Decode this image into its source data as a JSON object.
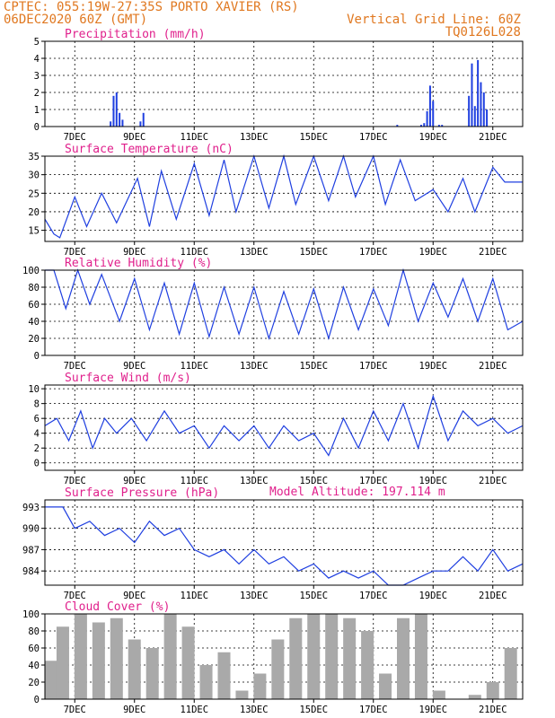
{
  "header": {
    "line1_left": "CPTEC:   055:19W-27:35S   PORTO XAVIER (RS)",
    "line2_left": "06DEC2020 60Z (GMT)",
    "line1_right": "Vertical Grid Line: 60Z",
    "line2_right": "TQ0126L028"
  },
  "colors": {
    "header": "#e07820",
    "title": "#e0208c",
    "series": "#1f3fe0",
    "cloud": "#a9a9a9"
  },
  "model_altitude": "Model Altitude: 197.114 m",
  "x_tick_labels": [
    "7DEC",
    "9DEC",
    "11DEC",
    "13DEC",
    "15DEC",
    "17DEC",
    "19DEC",
    "21DEC"
  ],
  "chart_data": [
    {
      "type": "bar",
      "title": "Precipitation (mm/h)",
      "x": [
        1.1,
        1.15,
        1.2,
        1.25,
        1.3,
        1.6,
        1.65,
        5.9,
        6.3,
        6.35,
        6.4,
        6.45,
        6.5,
        6.6,
        6.65,
        7.1,
        7.15,
        7.2,
        7.25,
        7.3,
        7.35,
        7.4
      ],
      "values": [
        0.3,
        1.8,
        2.0,
        0.8,
        0.4,
        0.3,
        0.8,
        0.1,
        0.1,
        0.2,
        0.9,
        2.4,
        1.5,
        0.1,
        0.1,
        1.8,
        3.7,
        1.2,
        3.9,
        2.6,
        2.0,
        1.0
      ],
      "ylim": [
        0,
        5
      ],
      "yticks": [
        0,
        1,
        2,
        3,
        4,
        5
      ]
    },
    {
      "type": "line",
      "title": "Surface Temperature (nC)",
      "x": [
        0,
        0.15,
        0.25,
        0.5,
        0.7,
        0.95,
        1.2,
        1.55,
        1.75,
        1.95,
        2.2,
        2.5,
        2.75,
        3.0,
        3.2,
        3.5,
        3.75,
        4.0,
        4.2,
        4.5,
        4.75,
        5.0,
        5.2,
        5.5,
        5.7,
        5.95,
        6.2,
        6.5,
        6.75,
        7.0,
        7.2,
        7.5,
        7.7,
        8.0
      ],
      "values": [
        18,
        14,
        13,
        24,
        16,
        25,
        17,
        29,
        16,
        31,
        18,
        33,
        19,
        34,
        20,
        35,
        21,
        35,
        22,
        35,
        23,
        35,
        24,
        35,
        22,
        34,
        23,
        26,
        20,
        29,
        20,
        32,
        28,
        28
      ],
      "ylim": [
        12,
        35
      ],
      "yticks": [
        15,
        20,
        25,
        30,
        35
      ]
    },
    {
      "type": "line",
      "title": "Relative Humidity (%)",
      "x": [
        0,
        0.15,
        0.35,
        0.55,
        0.75,
        0.95,
        1.25,
        1.5,
        1.75,
        2.0,
        2.25,
        2.5,
        2.75,
        3.0,
        3.25,
        3.5,
        3.75,
        4.0,
        4.25,
        4.5,
        4.75,
        5.0,
        5.25,
        5.5,
        5.75,
        6.0,
        6.25,
        6.5,
        6.75,
        7.0,
        7.25,
        7.5,
        7.75,
        8.0
      ],
      "values": [
        100,
        100,
        55,
        100,
        60,
        95,
        40,
        90,
        30,
        85,
        25,
        85,
        22,
        80,
        25,
        80,
        20,
        75,
        25,
        78,
        20,
        80,
        30,
        78,
        35,
        100,
        40,
        85,
        45,
        90,
        40,
        90,
        30,
        40
      ],
      "ylim": [
        0,
        100
      ],
      "yticks": [
        0,
        20,
        40,
        60,
        80,
        100
      ]
    },
    {
      "type": "line",
      "title": "Surface Wind (m/s)",
      "x": [
        0,
        0.2,
        0.4,
        0.6,
        0.8,
        1.0,
        1.2,
        1.45,
        1.7,
        2.0,
        2.25,
        2.5,
        2.75,
        3.0,
        3.25,
        3.5,
        3.75,
        4.0,
        4.25,
        4.5,
        4.75,
        5.0,
        5.25,
        5.5,
        5.75,
        6.0,
        6.25,
        6.5,
        6.75,
        7.0,
        7.25,
        7.5,
        7.75,
        8.0
      ],
      "values": [
        5,
        6,
        3,
        7,
        2,
        6,
        4,
        6,
        3,
        7,
        4,
        5,
        2,
        5,
        3,
        5,
        2,
        5,
        3,
        4,
        1,
        6,
        2,
        7,
        3,
        8,
        2,
        9,
        3,
        7,
        5,
        6,
        4,
        5
      ],
      "ylim": [
        -1,
        10.5
      ],
      "yticks": [
        0,
        2,
        4,
        6,
        8,
        10
      ]
    },
    {
      "type": "line",
      "title": "Surface Pressure (hPa)",
      "x": [
        0,
        0.3,
        0.5,
        0.75,
        1.0,
        1.25,
        1.5,
        1.75,
        2.0,
        2.25,
        2.5,
        2.75,
        3.0,
        3.25,
        3.5,
        3.75,
        4.0,
        4.25,
        4.5,
        4.75,
        5.0,
        5.25,
        5.5,
        5.75,
        6.0,
        6.25,
        6.5,
        6.75,
        7.0,
        7.25,
        7.5,
        7.75,
        8.0
      ],
      "values": [
        993,
        993,
        990,
        991,
        989,
        990,
        988,
        991,
        989,
        990,
        987,
        986,
        987,
        985,
        987,
        985,
        986,
        984,
        985,
        983,
        984,
        983,
        984,
        982,
        982,
        983,
        984,
        984,
        986,
        984,
        987,
        984,
        985
      ],
      "ylim": [
        982,
        994
      ],
      "yticks": [
        984,
        987,
        990,
        993
      ]
    },
    {
      "type": "bar",
      "title": "Cloud Cover (%)",
      "x": [
        0.1,
        0.3,
        0.6,
        0.9,
        1.2,
        1.5,
        1.8,
        2.1,
        2.4,
        2.7,
        3.0,
        3.3,
        3.6,
        3.9,
        4.2,
        4.5,
        4.8,
        5.1,
        5.4,
        5.7,
        6.0,
        6.3,
        6.6,
        6.9,
        7.2,
        7.5,
        7.8
      ],
      "values": [
        45,
        85,
        100,
        90,
        95,
        70,
        60,
        100,
        85,
        40,
        55,
        10,
        30,
        70,
        95,
        100,
        100,
        95,
        80,
        30,
        95,
        100,
        10,
        0,
        5,
        20,
        60
      ],
      "ylim": [
        0,
        100
      ],
      "yticks": [
        0,
        20,
        40,
        60,
        80,
        100
      ]
    }
  ]
}
